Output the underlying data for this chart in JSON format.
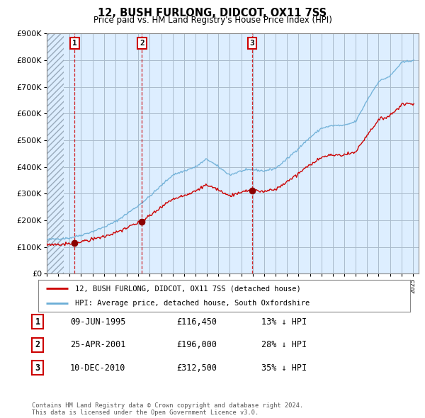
{
  "title": "12, BUSH FURLONG, DIDCOT, OX11 7SS",
  "subtitle": "Price paid vs. HM Land Registry's House Price Index (HPI)",
  "ylabel_max": 900000,
  "yticks": [
    0,
    100000,
    200000,
    300000,
    400000,
    500000,
    600000,
    700000,
    800000,
    900000
  ],
  "ytick_labels": [
    "£0",
    "£100K",
    "£200K",
    "£300K",
    "£400K",
    "£500K",
    "£600K",
    "£700K",
    "£800K",
    "£900K"
  ],
  "hpi_color": "#6baed6",
  "price_color": "#cc0000",
  "marker_color": "#8b0000",
  "bg_plot_color": "#ddeeff",
  "hatch_color": "#bbccdd",
  "sale_points": [
    {
      "year": 1995.44,
      "price": 116450,
      "label": "1"
    },
    {
      "year": 2001.32,
      "price": 196000,
      "label": "2"
    },
    {
      "year": 2010.94,
      "price": 312500,
      "label": "3"
    }
  ],
  "vline_color": "#cc0000",
  "legend_label_price": "12, BUSH FURLONG, DIDCOT, OX11 7SS (detached house)",
  "legend_label_hpi": "HPI: Average price, detached house, South Oxfordshire",
  "table_rows": [
    [
      "1",
      "09-JUN-1995",
      "£116,450",
      "13% ↓ HPI"
    ],
    [
      "2",
      "25-APR-2001",
      "£196,000",
      "28% ↓ HPI"
    ],
    [
      "3",
      "10-DEC-2010",
      "£312,500",
      "35% ↓ HPI"
    ]
  ],
  "footer": "Contains HM Land Registry data © Crown copyright and database right 2024.\nThis data is licensed under the Open Government Licence v3.0.",
  "background_color": "#ffffff",
  "grid_color": "#aabbcc",
  "xmin": 1993,
  "xmax": 2025.5,
  "hpi_anchors_years": [
    1993,
    1995,
    1996,
    1997,
    1998,
    1999,
    2000,
    2001,
    2002,
    2003,
    2004,
    2005,
    2006,
    2007,
    2008,
    2009,
    2010,
    2011,
    2012,
    2013,
    2014,
    2015,
    2016,
    2017,
    2018,
    2019,
    2020,
    2021,
    2022,
    2023,
    2024,
    2025
  ],
  "hpi_anchors_vals": [
    128000,
    134000,
    145000,
    158000,
    175000,
    195000,
    225000,
    255000,
    290000,
    330000,
    370000,
    385000,
    400000,
    430000,
    400000,
    370000,
    385000,
    390000,
    385000,
    395000,
    430000,
    470000,
    510000,
    545000,
    555000,
    555000,
    570000,
    650000,
    720000,
    740000,
    790000,
    800000
  ]
}
